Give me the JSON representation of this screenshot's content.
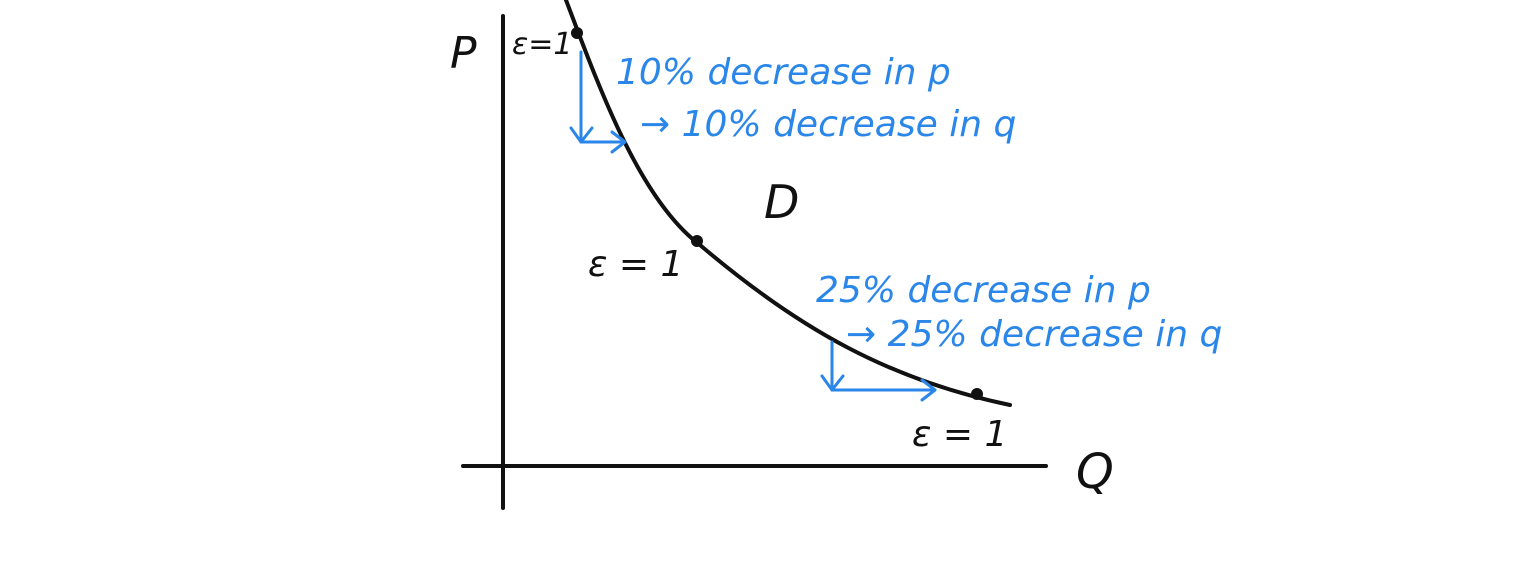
{
  "axes": {
    "y_label": "P",
    "x_label": "Q"
  },
  "curve": {
    "label": "D"
  },
  "points": [
    {
      "label": "ε=1"
    },
    {
      "label": "ε = 1"
    },
    {
      "label": "ε = 1"
    }
  ],
  "annotations": {
    "top": {
      "line1": "10% decrease in p",
      "line2": "→ 10% decrease in q"
    },
    "bottom": {
      "line1": "25% decrease in p",
      "line2": "→ 25% decrease in q"
    }
  },
  "colors": {
    "ink": "#111111",
    "annotation": "#2a86e8",
    "background": "#ffffff"
  }
}
